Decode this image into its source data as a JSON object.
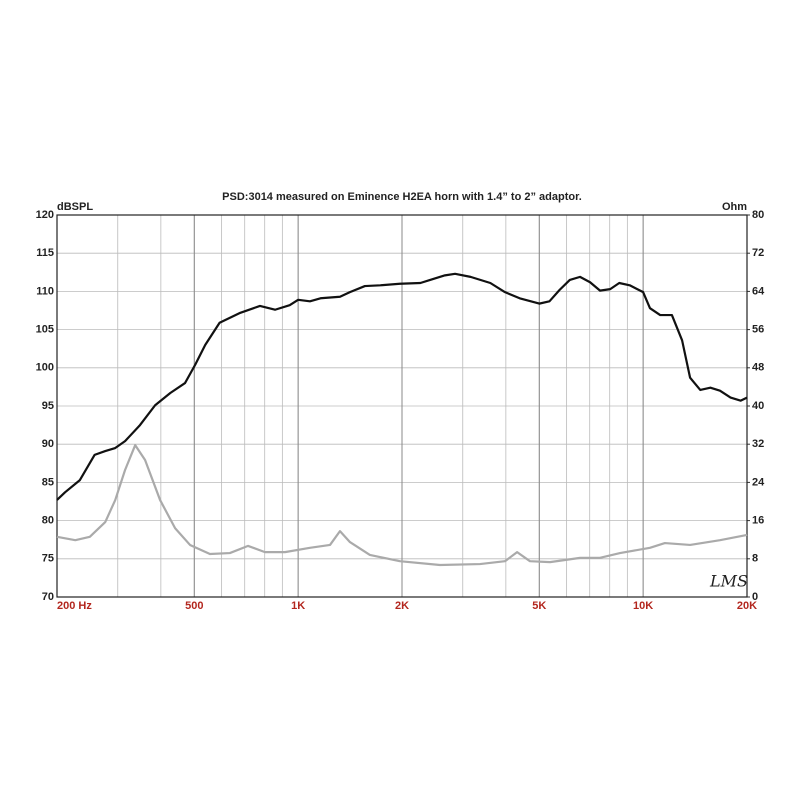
{
  "chart_data": {
    "type": "line",
    "title": "PSD:3014 measured on Eminence H2EA horn with 1.4” to 2” adaptor.",
    "ylabel": "dBSPL",
    "y2label": "Ohm",
    "annotation": "LMS",
    "xscale": "log",
    "xlim": [
      200,
      20000
    ],
    "xticks": [
      {
        "value": 200,
        "label": "200  Hz"
      },
      500,
      {
        "value": 1000,
        "label": "1K"
      },
      {
        "value": 2000,
        "label": "2K"
      },
      {
        "value": 5000,
        "label": "5K"
      },
      {
        "value": 10000,
        "label": "10K"
      },
      {
        "value": 20000,
        "label": "20K"
      }
    ],
    "xgrid": [
      200,
      300,
      400,
      500,
      600,
      700,
      800,
      900,
      1000,
      2000,
      3000,
      4000,
      5000,
      6000,
      7000,
      8000,
      9000,
      10000,
      20000
    ],
    "ylim": [
      70,
      120
    ],
    "yticks": [
      70,
      75,
      80,
      85,
      90,
      95,
      100,
      105,
      110,
      115,
      120
    ],
    "y2lim": [
      0,
      80
    ],
    "y2ticks": [
      0,
      8,
      16,
      24,
      32,
      40,
      48,
      56,
      64,
      72,
      80
    ],
    "grid": true,
    "series": [
      {
        "color": "#111111",
        "x": [
          200,
          211,
          233,
          257,
          276,
          295,
          315,
          348,
          385,
          426,
          470,
          503,
          538,
          592,
          680,
          775,
          857,
          945,
          1000,
          1082,
          1161,
          1322,
          1413,
          1561,
          1731,
          1972,
          2261,
          2413,
          2664,
          2850,
          3161,
          3607,
          3977,
          4386,
          5000,
          5351,
          5727,
          6129,
          6563,
          7017,
          7500,
          8028,
          8526,
          9143,
          10000,
          10466,
          11204,
          12116,
          12968,
          13680,
          14640,
          15665,
          16700,
          17920,
          19180,
          20000
        ],
        "values": [
          82.7,
          83.7,
          85.3,
          88.6,
          89.1,
          89.5,
          90.4,
          92.5,
          95.1,
          96.7,
          98,
          100.4,
          103,
          105.9,
          107.2,
          108.1,
          107.6,
          108.2,
          108.9,
          108.7,
          109.1,
          109.3,
          109.9,
          110.7,
          110.8,
          111,
          111.1,
          111.5,
          112.1,
          112.3,
          111.9,
          111.1,
          109.9,
          109.1,
          108.4,
          108.7,
          110.2,
          111.5,
          111.9,
          111.2,
          110.1,
          110.3,
          111.1,
          110.8,
          109.9,
          107.8,
          106.9,
          106.9,
          103.6,
          98.7,
          97.1,
          97.4,
          97,
          96.1,
          95.7,
          96.1
        ]
      },
      {
        "color": "#aaaaaa",
        "axis": "y2",
        "x": [
          200,
          226,
          249,
          276,
          295,
          315,
          337,
          360,
          398,
          440,
          486,
          555,
          634,
          716,
          801,
          916,
          1082,
          1237,
          1322,
          1413,
          1614,
          1972,
          2577,
          3366,
          3977,
          4312,
          4698,
          5370,
          6563,
          7500,
          8570,
          10466,
          11560,
          13680,
          16700,
          20000
        ],
        "values": [
          12.6,
          11.9,
          12.6,
          15.7,
          20.3,
          26.6,
          31.8,
          28.7,
          20.3,
          14.4,
          10.9,
          9,
          9.2,
          10.7,
          9.4,
          9.4,
          10.3,
          10.9,
          13.8,
          11.5,
          8.8,
          7.5,
          6.7,
          6.9,
          7.5,
          9.4,
          7.5,
          7.3,
          8.2,
          8.2,
          9.2,
          10.3,
          11.3,
          10.9,
          11.9,
          13
        ]
      }
    ]
  }
}
